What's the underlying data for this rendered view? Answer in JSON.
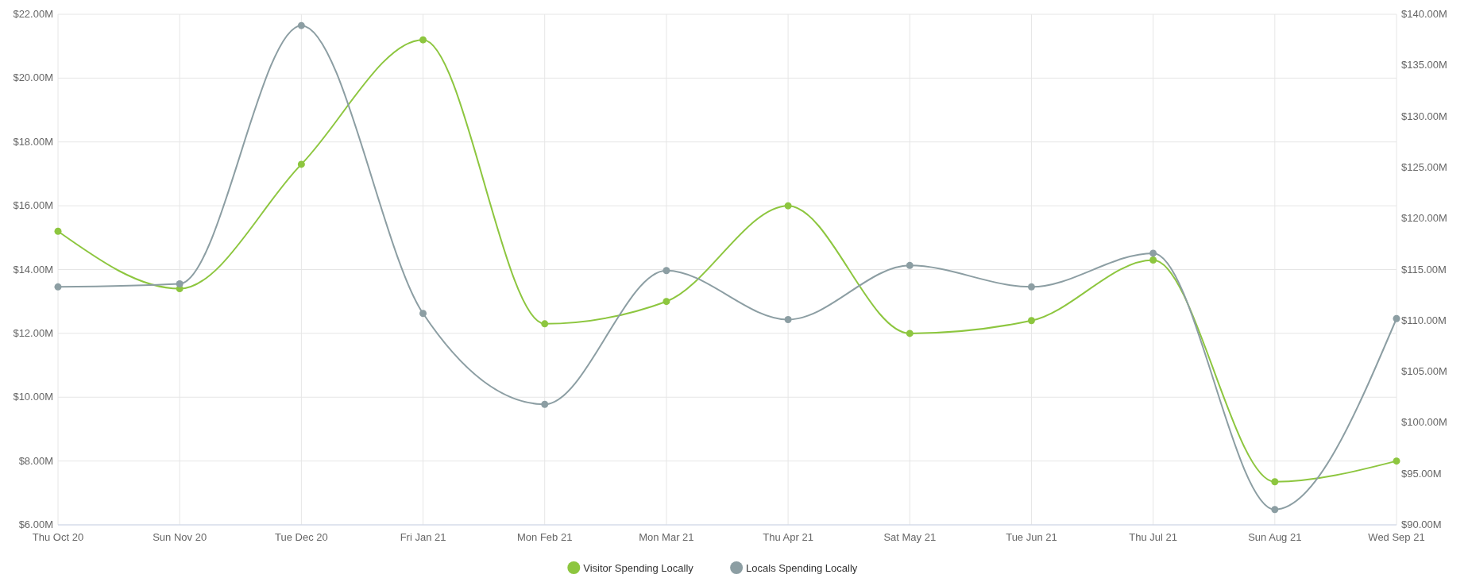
{
  "chart_data": {
    "type": "line",
    "categories": [
      "Thu Oct 20",
      "Sun Nov 20",
      "Tue Dec 20",
      "Fri Jan 21",
      "Mon Feb 21",
      "Mon Mar 21",
      "Thu Apr 21",
      "Sat May 21",
      "Tue Jun 21",
      "Thu Jul 21",
      "Sun Aug 21",
      "Wed Sep 21"
    ],
    "series": [
      {
        "name": "Visitor Spending Locally",
        "color": "#8dc63f",
        "values": [
          15.2,
          13.4,
          17.3,
          21.2,
          12.3,
          13.0,
          16.0,
          12.0,
          12.4,
          14.3,
          7.35,
          8.0
        ]
      },
      {
        "name": "Locals Spending Locally",
        "color": "#8c9ea3",
        "axis": "y2",
        "values": [
          113.3,
          113.6,
          138.9,
          110.7,
          101.8,
          114.9,
          110.1,
          115.4,
          113.3,
          116.6,
          91.5,
          110.2
        ]
      }
    ],
    "ylim": [
      6,
      22
    ],
    "yticks": [
      {
        "value": 6,
        "label": "$6.00M"
      },
      {
        "value": 8,
        "label": "$8.00M"
      },
      {
        "value": 10,
        "label": "$10.00M"
      },
      {
        "value": 12,
        "label": "$12.00M"
      },
      {
        "value": 14,
        "label": "$14.00M"
      },
      {
        "value": 16,
        "label": "$16.00M"
      },
      {
        "value": 18,
        "label": "$18.00M"
      },
      {
        "value": 20,
        "label": "$20.00M"
      },
      {
        "value": 22,
        "label": "$22.00M"
      }
    ],
    "y2lim": [
      90,
      140
    ],
    "y2ticks": [
      {
        "value": 90,
        "label": "$90.00M"
      },
      {
        "value": 95,
        "label": "$95.00M"
      },
      {
        "value": 100,
        "label": "$100.00M"
      },
      {
        "value": 105,
        "label": "$105.00M"
      },
      {
        "value": 110,
        "label": "$110.00M"
      },
      {
        "value": 115,
        "label": "$115.00M"
      },
      {
        "value": 120,
        "label": "$120.00M"
      },
      {
        "value": 125,
        "label": "$125.00M"
      },
      {
        "value": 130,
        "label": "$130.00M"
      },
      {
        "value": 135,
        "label": "$135.00M"
      },
      {
        "value": 140,
        "label": "$140.00M"
      }
    ],
    "grid": true,
    "legend": "bottom",
    "marker": "circle"
  }
}
